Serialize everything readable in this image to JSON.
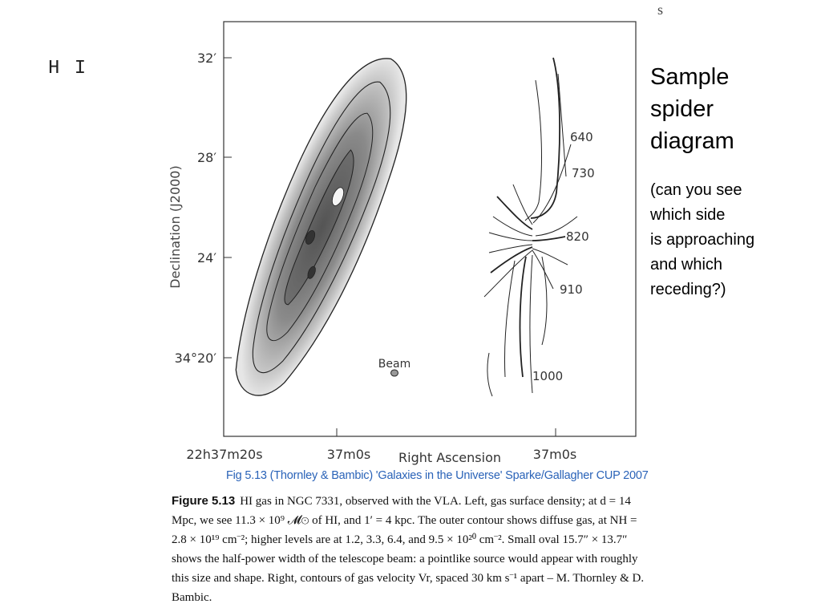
{
  "slide": {
    "tag": "H I",
    "corner_mark": "s"
  },
  "side_note": {
    "heading_lines": [
      "Sample",
      "spider",
      "diagram"
    ],
    "question_lines": [
      "(can you see",
      "which side",
      "is approaching",
      "and which",
      "receding?)"
    ]
  },
  "figure": {
    "y_axis_label": "Declination (J2000)",
    "y_ticks": [
      "32′",
      "28′",
      "24′",
      "34°20′"
    ],
    "x_ticks": [
      "22h37m20s",
      "37m0s",
      "37m0s"
    ],
    "x_axis_label": "Right Ascension",
    "beam_label": "Beam",
    "velocity_labels": [
      "640",
      "730",
      "820",
      "910",
      "1000"
    ],
    "credit": "Fig 5.13 (Thornley & Bambic) 'Galaxies in the Universe' Sparke/Gallagher CUP 2007"
  },
  "caption": {
    "label": "Figure 5.13",
    "text": "HI gas in NGC 7331, observed with the VLA. Left, gas surface density; at d = 14 Mpc, we see 11.3 × 10⁹ 𝓜⊙ of HI, and 1′ = 4 kpc. The outer contour shows diffuse gas, at NH = 2.8 × 10¹⁹ cm⁻²; higher levels are at 1.2, 3.3, 6.4, and 9.5 × 10²⁰ cm⁻². Small oval 15.7″ × 13.7″ shows the half-power width of the telescope beam: a pointlike source would appear with roughly this size and shape. Right, contours of gas velocity Vr, spaced 30 km s⁻¹ apart – M. Thornley & D. Bambic."
  }
}
